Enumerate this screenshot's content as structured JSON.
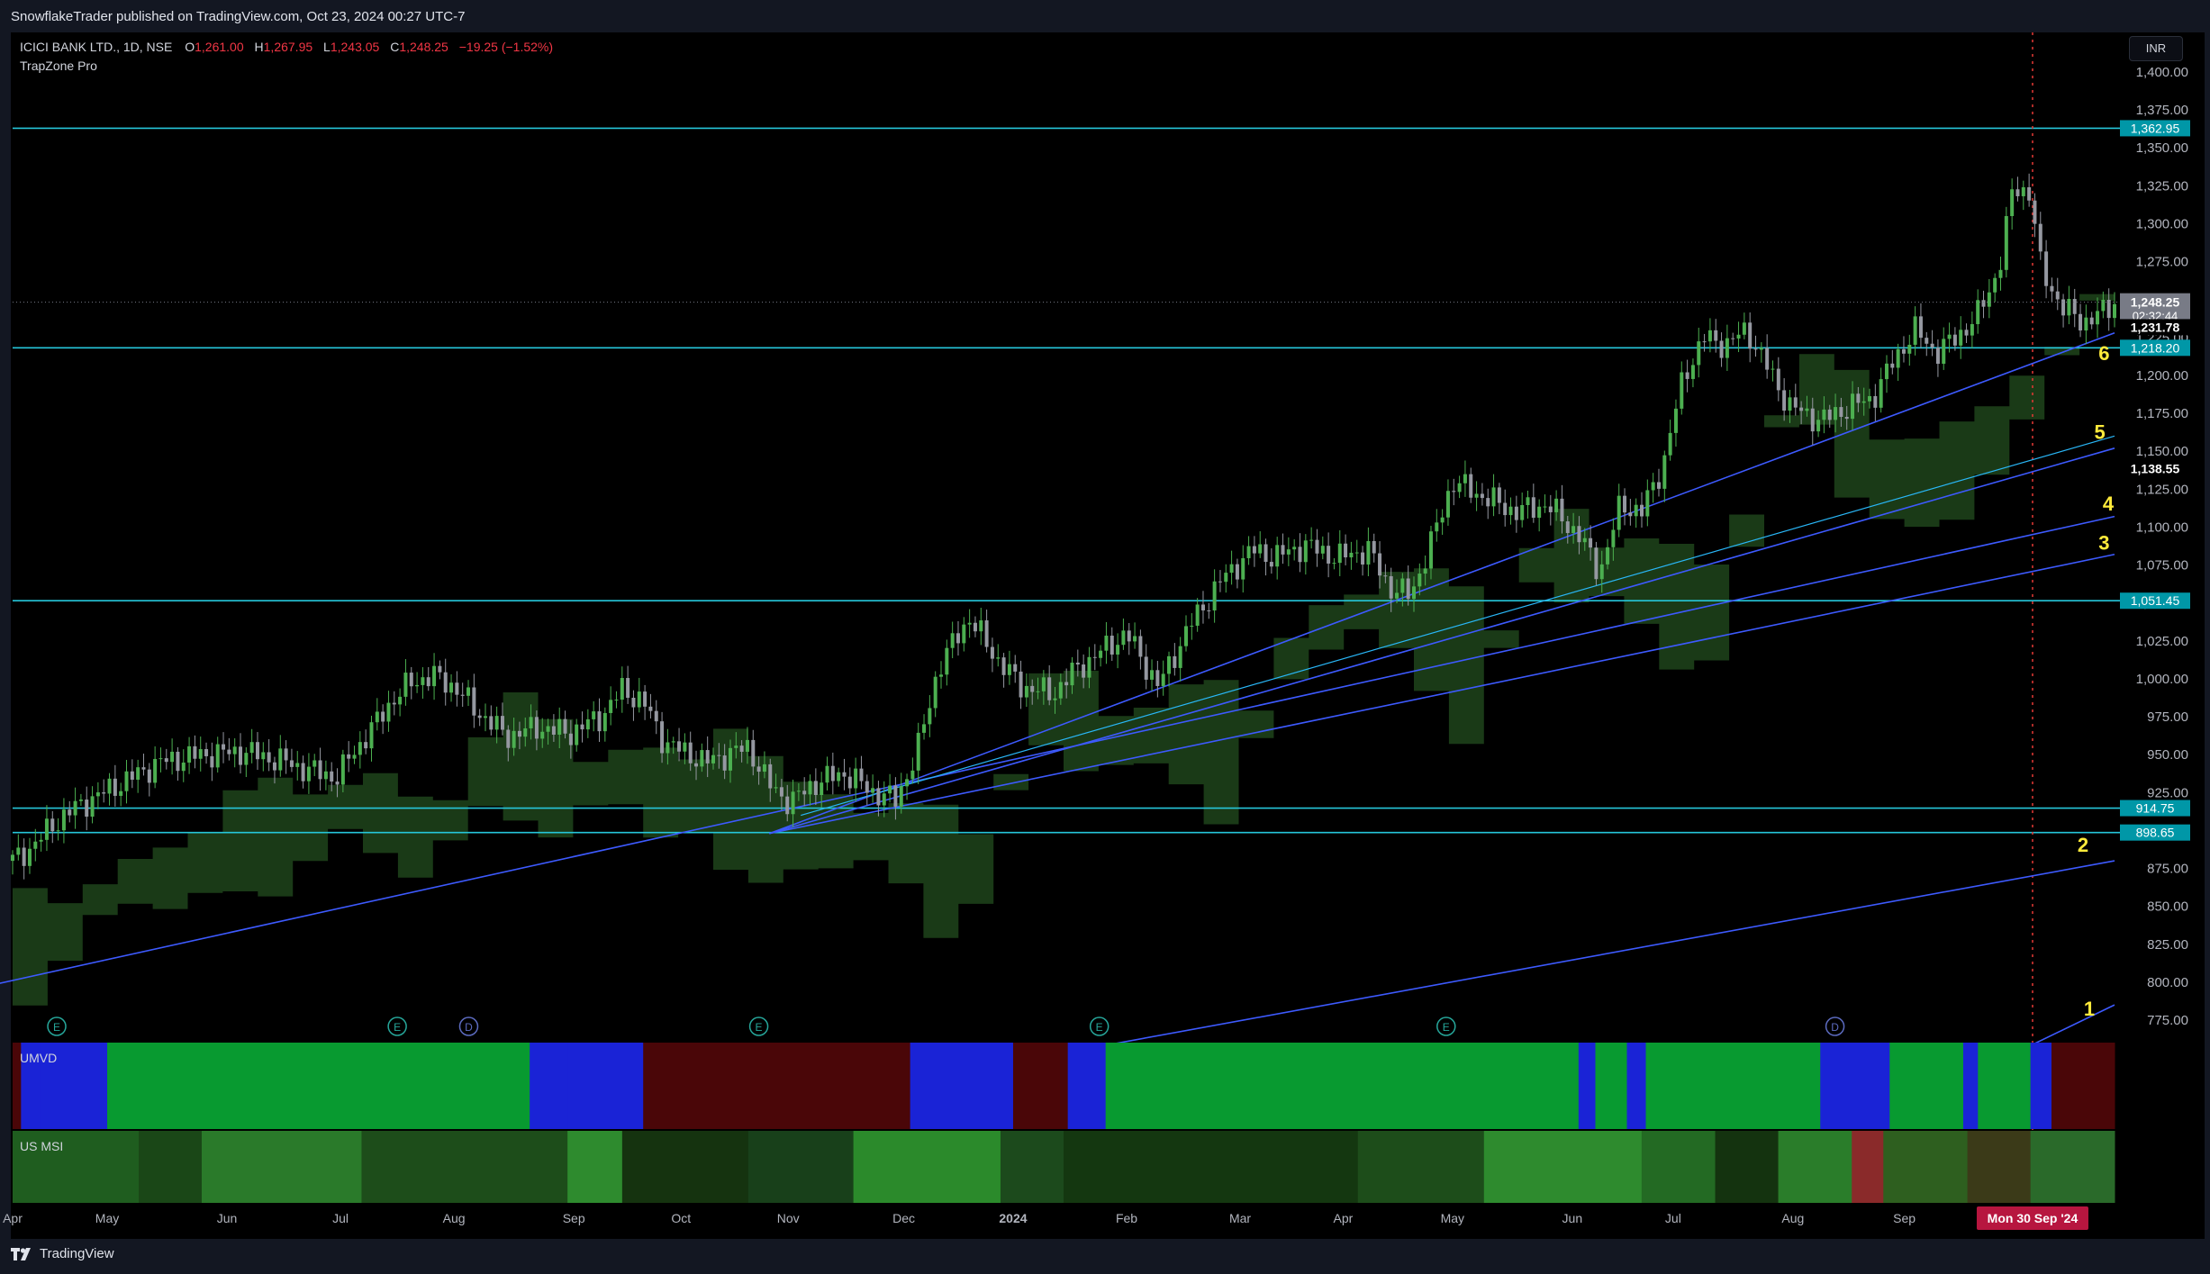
{
  "header": {
    "published_by": "SnowflakeTrader published on TradingView.com, Oct 23, 2024 00:27 UTC-7"
  },
  "branding": {
    "logo_text": "TradingView"
  },
  "legend": {
    "symbol": "ICICI BANK LTD., 1D, NSE",
    "open_label": "O",
    "open": "1,261.00",
    "high_label": "H",
    "high": "1,267.95",
    "low_label": "L",
    "low": "1,243.05",
    "close_label": "C",
    "close": "1,248.25",
    "change": "−19.25 (−1.52%)",
    "indicator": "TrapZone Pro"
  },
  "currency_button": "INR",
  "colors": {
    "background": "#000000",
    "bull": "#4caf50",
    "bear": "#9598a1",
    "cloud": "#1b3d18",
    "level": "#26c6da",
    "trend": "#3d5afe",
    "number_label": "#ffeb3b",
    "umvd_green": "#089a30",
    "umvd_blue": "#1a23d6",
    "umvd_red": "#4a0608",
    "cursor": "#b7163f"
  },
  "chart_data": {
    "type": "candlestick",
    "title": "ICICI BANK LTD., 1D, NSE",
    "x_axis_labels": [
      "Apr",
      "May",
      "Jun",
      "Jul",
      "Aug",
      "Sep",
      "Oct",
      "Nov",
      "Dec",
      "2024",
      "Feb",
      "Mar",
      "Apr",
      "May",
      "Jun",
      "Jul",
      "Aug",
      "Sep"
    ],
    "crosshair_date": "Mon 30 Sep '24",
    "y_axis": {
      "min": 775,
      "max": 1400,
      "ticks": [
        "1,400.00",
        "1,375.00",
        "1,350.00",
        "1,325.00",
        "1,300.00",
        "1,275.00",
        "1,250.00",
        "1,225.00",
        "1,200.00",
        "1,175.00",
        "1,150.00",
        "1,125.00",
        "1,100.00",
        "1,075.00",
        "1,050.00",
        "1,025.00",
        "1,000.00",
        "975.00",
        "950.00",
        "925.00",
        "900.00",
        "875.00",
        "850.00",
        "825.00",
        "800.00",
        "775.00"
      ]
    },
    "price_path": [
      [
        0,
        880
      ],
      [
        0.01,
        890
      ],
      [
        0.02,
        905
      ],
      [
        0.03,
        915
      ],
      [
        0.05,
        930
      ],
      [
        0.07,
        945
      ],
      [
        0.09,
        950
      ],
      [
        0.11,
        952
      ],
      [
        0.13,
        945
      ],
      [
        0.14,
        940
      ],
      [
        0.155,
        935
      ],
      [
        0.16,
        948
      ],
      [
        0.17,
        965
      ],
      [
        0.18,
        985
      ],
      [
        0.19,
        998
      ],
      [
        0.2,
        1002
      ],
      [
        0.21,
        995
      ],
      [
        0.22,
        980
      ],
      [
        0.235,
        962
      ],
      [
        0.25,
        968
      ],
      [
        0.265,
        964
      ],
      [
        0.28,
        975
      ],
      [
        0.29,
        993
      ],
      [
        0.3,
        985
      ],
      [
        0.31,
        958
      ],
      [
        0.33,
        945
      ],
      [
        0.35,
        955
      ],
      [
        0.36,
        930
      ],
      [
        0.37,
        918
      ],
      [
        0.38,
        930
      ],
      [
        0.395,
        938
      ],
      [
        0.41,
        925
      ],
      [
        0.42,
        920
      ],
      [
        0.43,
        950
      ],
      [
        0.44,
        1005
      ],
      [
        0.45,
        1030
      ],
      [
        0.455,
        1040
      ],
      [
        0.47,
        1010
      ],
      [
        0.48,
        995
      ],
      [
        0.495,
        990
      ],
      [
        0.505,
        1005
      ],
      [
        0.515,
        1015
      ],
      [
        0.53,
        1030
      ],
      [
        0.545,
        995
      ],
      [
        0.56,
        1035
      ],
      [
        0.575,
        1065
      ],
      [
        0.59,
        1085
      ],
      [
        0.6,
        1080
      ],
      [
        0.615,
        1088
      ],
      [
        0.63,
        1080
      ],
      [
        0.645,
        1085
      ],
      [
        0.655,
        1060
      ],
      [
        0.665,
        1055
      ],
      [
        0.675,
        1090
      ],
      [
        0.685,
        1130
      ],
      [
        0.7,
        1120
      ],
      [
        0.715,
        1110
      ],
      [
        0.73,
        1115
      ],
      [
        0.745,
        1095
      ],
      [
        0.755,
        1070
      ],
      [
        0.765,
        1115
      ],
      [
        0.775,
        1110
      ],
      [
        0.785,
        1140
      ],
      [
        0.795,
        1200
      ],
      [
        0.805,
        1225
      ],
      [
        0.815,
        1220
      ],
      [
        0.825,
        1230
      ],
      [
        0.835,
        1205
      ],
      [
        0.845,
        1180
      ],
      [
        0.86,
        1170
      ],
      [
        0.875,
        1180
      ],
      [
        0.885,
        1185
      ],
      [
        0.895,
        1210
      ],
      [
        0.905,
        1230
      ],
      [
        0.915,
        1215
      ],
      [
        0.925,
        1225
      ],
      [
        0.935,
        1240
      ],
      [
        0.945,
        1270
      ],
      [
        0.952,
        1325
      ],
      [
        0.96,
        1320
      ],
      [
        0.965,
        1270
      ],
      [
        0.975,
        1245
      ],
      [
        0.985,
        1235
      ],
      [
        0.995,
        1242
      ],
      [
        1,
        1248.25
      ]
    ],
    "last_candle": {
      "open": 1261.0,
      "high": 1267.95,
      "low": 1243.05,
      "close": 1248.25,
      "change": -19.25,
      "change_pct": -1.52
    },
    "horizontal_levels": [
      1362.95,
      1218.2,
      1051.45,
      914.75,
      898.65
    ],
    "horizontal_level_labels": [
      "1,362.95",
      "1,218.20",
      "1,051.45",
      "914.75",
      "898.65"
    ],
    "price_tags": {
      "last_price": "1,248.25",
      "countdown": "02:32:44",
      "level_a": "1,231.78",
      "level_b": "1,138.55"
    },
    "trendline_labels": [
      "1",
      "2",
      "3",
      "4",
      "5",
      "6"
    ],
    "event_markers": [
      {
        "letter": "E"
      },
      {
        "letter": "E"
      },
      {
        "letter": "D"
      },
      {
        "letter": "E"
      },
      {
        "letter": "E"
      },
      {
        "letter": "E"
      },
      {
        "letter": "D"
      }
    ]
  },
  "panes": {
    "umvd": {
      "label": "UMVD"
    },
    "us_msi": {
      "label": "US MSI"
    }
  }
}
